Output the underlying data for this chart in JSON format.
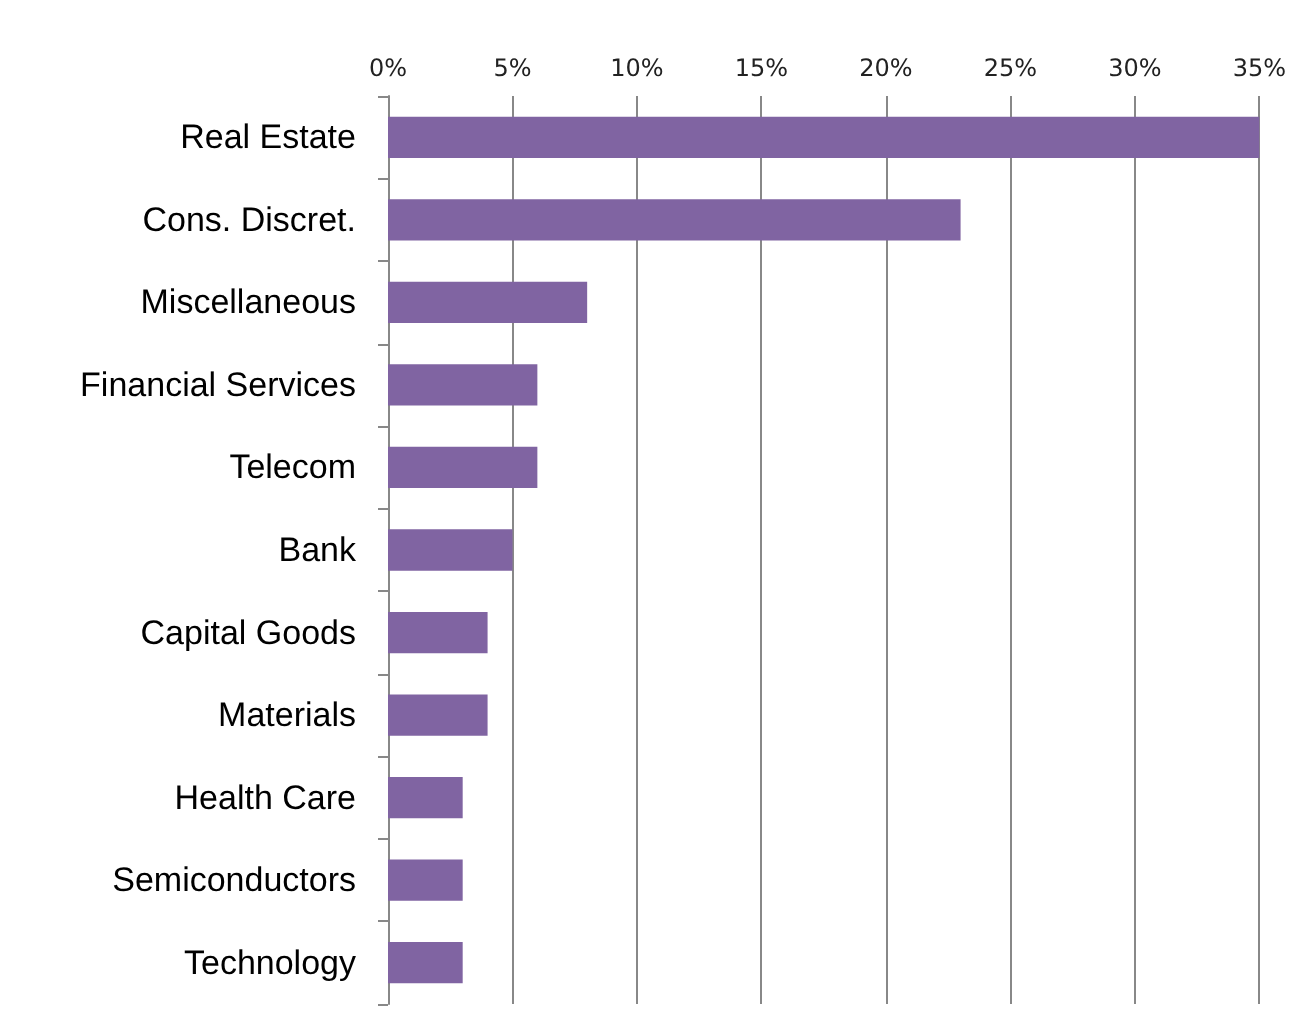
{
  "chart_data": {
    "type": "bar",
    "orientation": "horizontal",
    "categories": [
      "Real Estate",
      "Cons. Discret.",
      "Miscellaneous",
      "Financial Services",
      "Telecom",
      "Bank",
      "Capital Goods",
      "Materials",
      "Health Care",
      "Semiconductors",
      "Technology"
    ],
    "values": [
      35,
      23,
      8,
      6,
      6,
      5,
      4,
      4,
      3,
      3,
      3
    ],
    "color": "#8064a2",
    "xlim": [
      0,
      35
    ],
    "xticks": [
      {
        "value": 0,
        "label": "0%"
      },
      {
        "value": 5,
        "label": "5%"
      },
      {
        "value": 10,
        "label": "10%"
      },
      {
        "value": 15,
        "label": "15%"
      },
      {
        "value": 20,
        "label": "20%"
      },
      {
        "value": 25,
        "label": "25%"
      },
      {
        "value": 30,
        "label": "30%"
      },
      {
        "value": 35,
        "label": "35%"
      }
    ],
    "grid": "x"
  }
}
